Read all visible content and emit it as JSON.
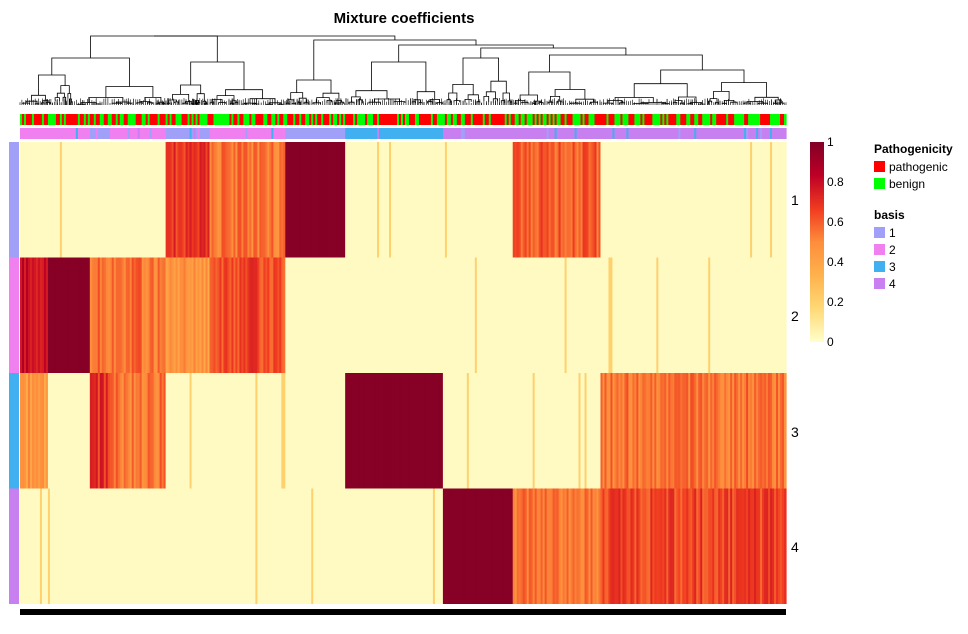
{
  "chart_data": {
    "type": "heatmap",
    "title": "Mixture coefficients",
    "rows": [
      "1",
      "2",
      "3",
      "4"
    ],
    "row_colors": [
      "#a0a0f8",
      "#f080f0",
      "#40b0f0",
      "#c880f0"
    ],
    "n_columns": 384,
    "column_blocks": [
      {
        "n": 14,
        "basis": "2",
        "values": [
          0.02,
          0.8,
          0.45,
          0.02
        ]
      },
      {
        "n": 21,
        "basis": "2",
        "values": [
          0.02,
          0.98,
          0.02,
          0.02
        ]
      },
      {
        "n": 10,
        "basis": "1",
        "values": [
          0.02,
          0.55,
          0.7,
          0.02
        ]
      },
      {
        "n": 28,
        "basis": "2",
        "values": [
          0.02,
          0.55,
          0.55,
          0.02
        ]
      },
      {
        "n": 22,
        "basis": "1",
        "values": [
          0.7,
          0.45,
          0.02,
          0.02
        ]
      },
      {
        "n": 38,
        "basis": "2",
        "values": [
          0.55,
          0.65,
          0.02,
          0.02
        ]
      },
      {
        "n": 30,
        "basis": "1",
        "values": [
          0.98,
          0.02,
          0.02,
          0.02
        ]
      },
      {
        "n": 49,
        "basis": "3",
        "values": [
          0.02,
          0.02,
          0.98,
          0.02
        ]
      },
      {
        "n": 35,
        "basis": "4",
        "values": [
          0.02,
          0.02,
          0.02,
          0.98
        ]
      },
      {
        "n": 44,
        "basis": "4",
        "values": [
          0.6,
          0.02,
          0.02,
          0.55
        ]
      },
      {
        "n": 93,
        "basis": "4",
        "values": [
          0.02,
          0.02,
          0.55,
          0.65
        ]
      }
    ],
    "color_scale": {
      "min": 0,
      "max": 1,
      "ticks": [
        "1",
        "0.8",
        "0.6",
        "0.4",
        "0.2",
        "0"
      ],
      "stops": [
        "#ffffcc",
        "#fed976",
        "#feb24c",
        "#fd8d3c",
        "#f03b20",
        "#bd0026",
        "#800026"
      ]
    }
  },
  "legend": {
    "pathogenicity": {
      "title": "Pathogenicity",
      "items": [
        {
          "label": "pathogenic",
          "color": "#ff0000"
        },
        {
          "label": "benign",
          "color": "#00ff00"
        }
      ]
    },
    "basis": {
      "title": "basis",
      "items": [
        {
          "label": "1",
          "color": "#a0a0f8"
        },
        {
          "label": "2",
          "color": "#f080f0"
        },
        {
          "label": "3",
          "color": "#40b0f0"
        },
        {
          "label": "4",
          "color": "#c880f0"
        }
      ]
    }
  }
}
